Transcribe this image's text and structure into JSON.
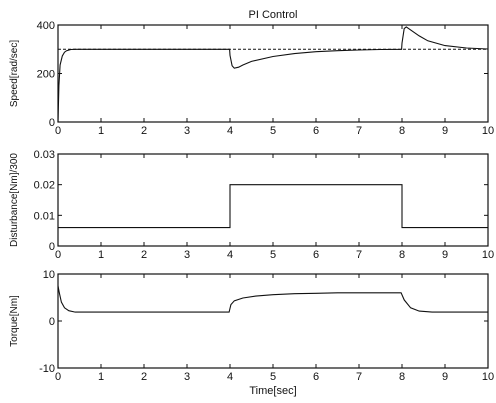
{
  "chart_data": [
    {
      "type": "line",
      "title": "PI Control",
      "ylabel": "Speed[rad/sec]",
      "xlabel": "",
      "xlim": [
        0,
        10
      ],
      "ylim": [
        0,
        400
      ],
      "xticks": [
        "0",
        "1",
        "2",
        "3",
        "4",
        "5",
        "6",
        "7",
        "8",
        "9",
        "10"
      ],
      "yticks": [
        "0",
        "200",
        "400"
      ],
      "series": [
        {
          "style": "solid",
          "x": [
            0,
            0.02,
            0.05,
            0.1,
            0.15,
            0.2,
            0.3,
            0.4,
            0.5,
            1,
            2,
            3,
            3.99,
            4.0,
            4.05,
            4.1,
            4.2,
            4.3,
            4.5,
            5,
            5.5,
            6,
            6.5,
            7,
            7.5,
            7.99,
            8.0,
            8.05,
            8.1,
            8.2,
            8.4,
            8.6,
            9,
            9.5,
            10
          ],
          "y": [
            0,
            150,
            235,
            272,
            288,
            294,
            299,
            300,
            300,
            300,
            300,
            300,
            300,
            275,
            232,
            222,
            226,
            235,
            250,
            270,
            282,
            290,
            294,
            297,
            299,
            300,
            325,
            385,
            392,
            380,
            355,
            335,
            315,
            305,
            301
          ]
        },
        {
          "style": "dashed",
          "x": [
            0,
            10
          ],
          "y": [
            300,
            300
          ]
        }
      ]
    },
    {
      "type": "line",
      "title": "",
      "ylabel": "Disturbance[Nm]/300",
      "xlabel": "",
      "xlim": [
        0,
        10
      ],
      "ylim": [
        0,
        0.03
      ],
      "xticks": [
        "0",
        "1",
        "2",
        "3",
        "4",
        "5",
        "6",
        "7",
        "8",
        "9",
        "10"
      ],
      "yticks": [
        "0",
        "0.01",
        "0.02",
        "0.03"
      ],
      "series": [
        {
          "style": "solid",
          "x": [
            0,
            4,
            4,
            8,
            8,
            10
          ],
          "y": [
            0.006,
            0.006,
            0.02,
            0.02,
            0.006,
            0.006
          ]
        }
      ]
    },
    {
      "type": "line",
      "title": "",
      "ylabel": "Torque[Nm]",
      "xlabel": "Time[sec]",
      "xlim": [
        0,
        10
      ],
      "ylim": [
        -10,
        10
      ],
      "xticks": [
        "0",
        "1",
        "2",
        "3",
        "4",
        "5",
        "6",
        "7",
        "8",
        "9",
        "10"
      ],
      "yticks": [
        "-10",
        "0",
        "10"
      ],
      "series": [
        {
          "style": "solid",
          "x": [
            0,
            0.03,
            0.08,
            0.15,
            0.25,
            0.4,
            0.6,
            1,
            2,
            3,
            3.98,
            4.02,
            4.1,
            4.3,
            4.6,
            5,
            5.5,
            6,
            6.5,
            7,
            7.5,
            7.98,
            8.05,
            8.2,
            8.4,
            8.7,
            9,
            9.5,
            10
          ],
          "y": [
            7.5,
            6,
            4,
            2.8,
            2.2,
            1.9,
            1.9,
            1.9,
            1.9,
            1.9,
            1.9,
            3.5,
            4.3,
            4.9,
            5.3,
            5.6,
            5.8,
            5.9,
            6.0,
            6.0,
            6.0,
            6.0,
            4.5,
            2.8,
            2.1,
            1.9,
            1.9,
            1.9,
            1.9
          ]
        }
      ]
    }
  ]
}
